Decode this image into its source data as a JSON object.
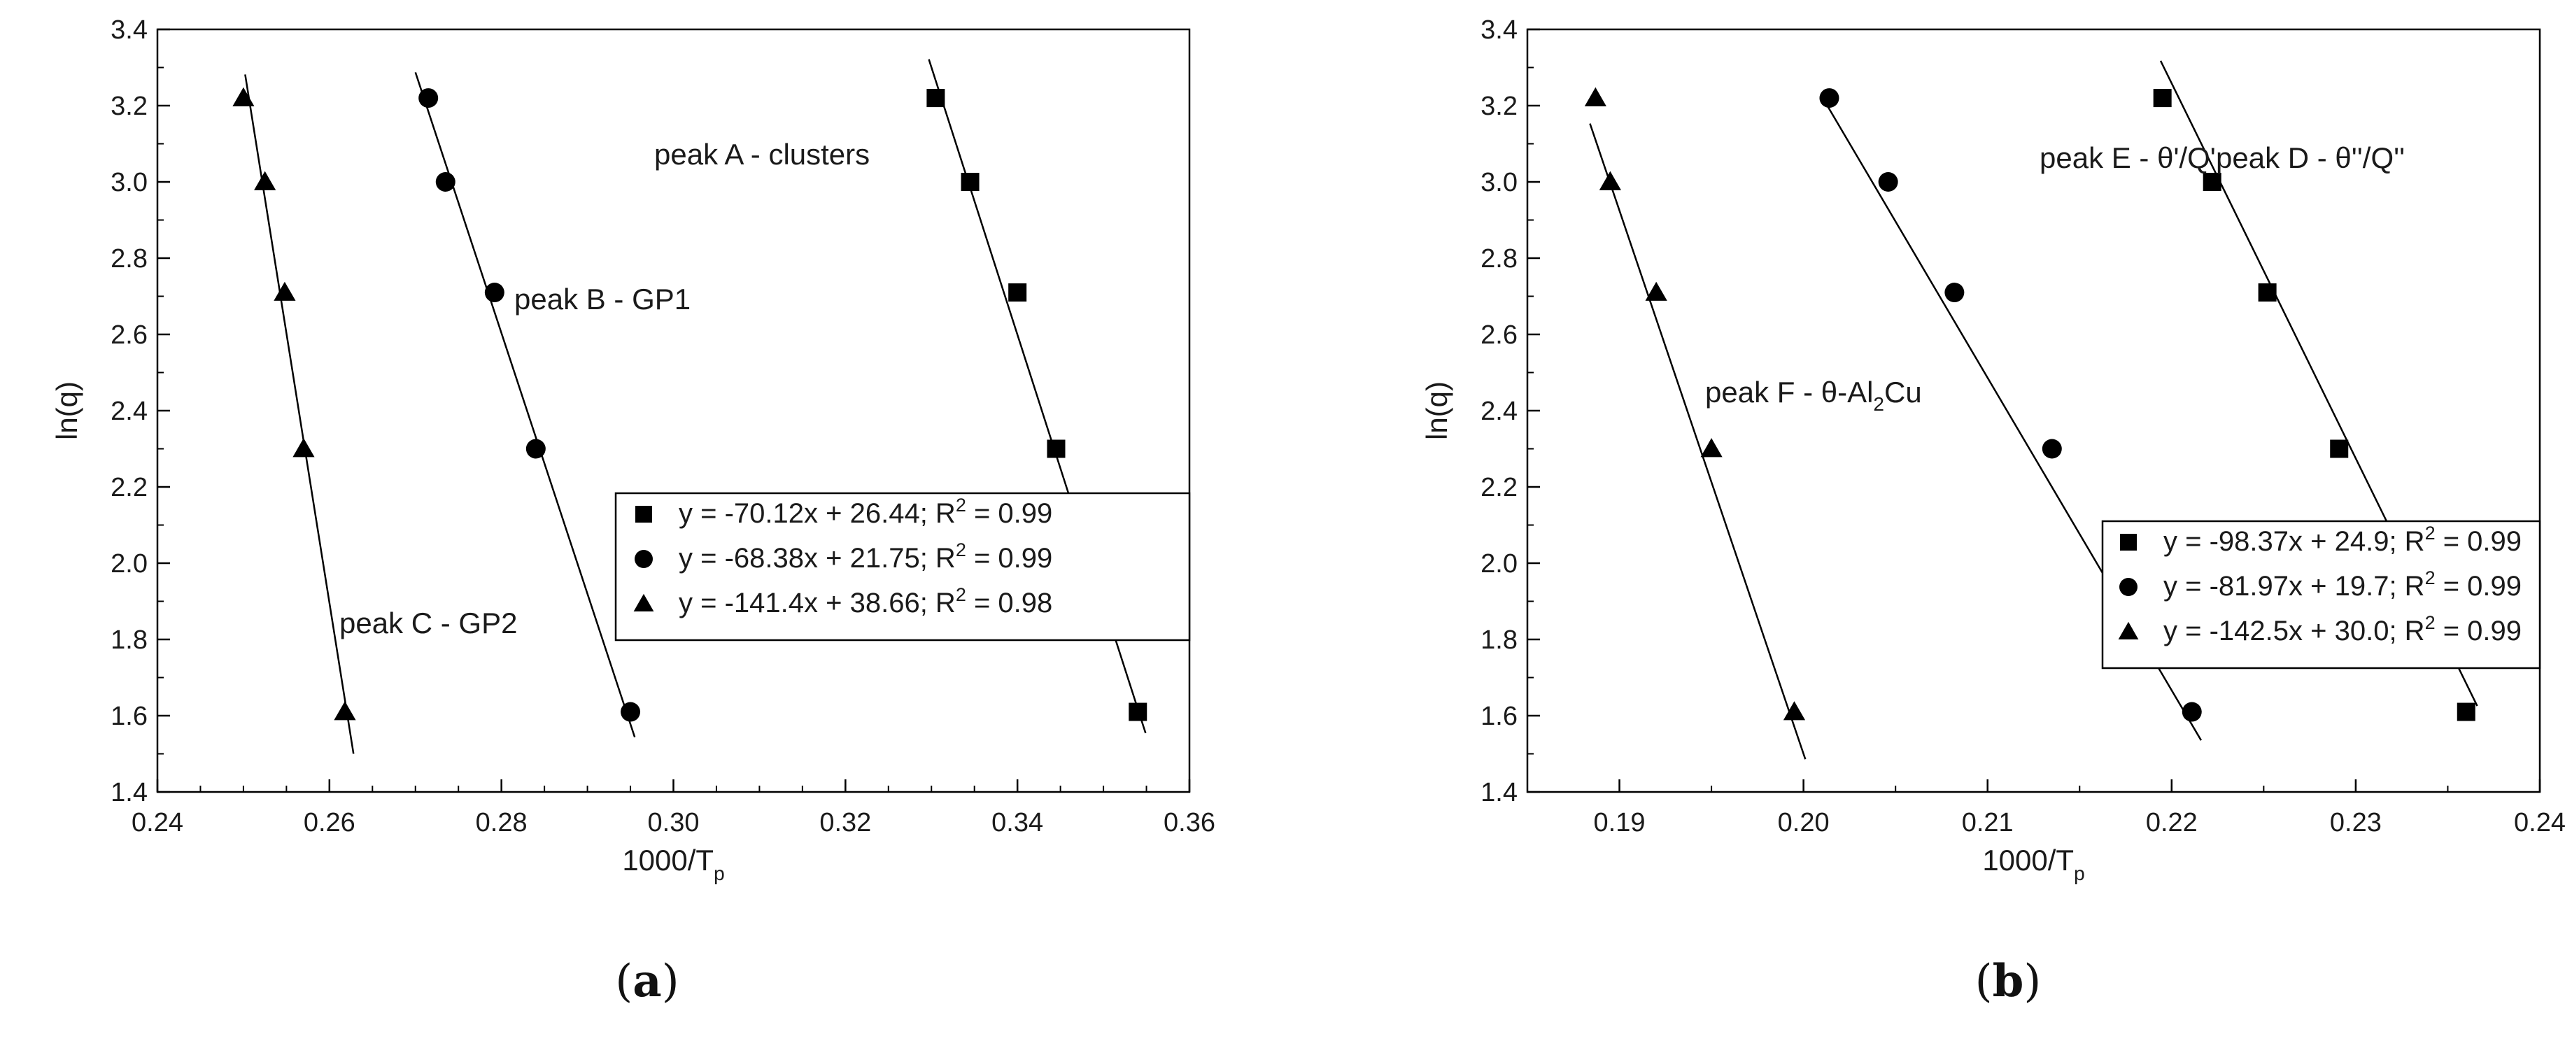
{
  "chart_data": [
    {
      "type": "scatter",
      "panel": "a",
      "caption_label": "a",
      "xlabel": "1000/T",
      "xlabel_sub": "p",
      "ylabel": "ln(q)",
      "xlim": [
        0.24,
        0.36
      ],
      "ylim": [
        1.4,
        3.4
      ],
      "x_ticks": [
        "0.24",
        "0.26",
        "0.28",
        "0.30",
        "0.32",
        "0.34",
        "0.36"
      ],
      "y_ticks": [
        "1.4",
        "1.6",
        "1.8",
        "2.0",
        "2.2",
        "2.4",
        "2.6",
        "2.8",
        "3.0",
        "3.2",
        "3.4"
      ],
      "series": [
        {
          "marker": "square",
          "legend_text": "y = -70.12x + 26.44;  R",
          "legend_r2": " = 0.99",
          "annotation": "peak A - clusters",
          "fit": {
            "slope": -70.12,
            "intercept": 26.44,
            "x_range": [
              0.3297,
              0.3549
            ]
          },
          "points": [
            [
              0.3305,
              3.22
            ],
            [
              0.3345,
              3.0
            ],
            [
              0.34,
              2.71
            ],
            [
              0.3445,
              2.3
            ],
            [
              0.354,
              1.61
            ]
          ]
        },
        {
          "marker": "circle",
          "legend_text": "y = -68.38x + 21.75;  R",
          "legend_r2": " = 0.99",
          "annotation": "peak B - GP1",
          "fit": {
            "slope": -68.38,
            "intercept": 21.75,
            "x_range": [
              0.27,
              0.2955
            ]
          },
          "points": [
            [
              0.2715,
              3.22
            ],
            [
              0.2735,
              3.0
            ],
            [
              0.2792,
              2.71
            ],
            [
              0.284,
              2.3
            ],
            [
              0.295,
              1.61
            ]
          ]
        },
        {
          "marker": "triangle",
          "legend_text": "y = -141.4x + 38.66; R",
          "legend_r2": " = 0.98",
          "annotation": "peak C - GP2",
          "fit": {
            "slope": -141.4,
            "intercept": 38.66,
            "x_range": [
              0.2502,
              0.2628
            ]
          },
          "points": [
            [
              0.25,
              3.22
            ],
            [
              0.2525,
              3.0
            ],
            [
              0.2548,
              2.71
            ],
            [
              0.257,
              2.3
            ],
            [
              0.2618,
              1.61
            ]
          ]
        }
      ]
    },
    {
      "type": "scatter",
      "panel": "b",
      "caption_label": "b",
      "xlabel": "1000/T",
      "xlabel_sub": "p",
      "ylabel": "ln(q)",
      "xlim": [
        0.185,
        0.24
      ],
      "ylim": [
        1.4,
        3.4
      ],
      "x_ticks": [
        "0.19",
        "0.20",
        "0.21",
        "0.22",
        "0.23",
        "0.24"
      ],
      "y_ticks": [
        "1.4",
        "1.6",
        "1.8",
        "2.0",
        "2.2",
        "2.4",
        "2.6",
        "2.8",
        "3.0",
        "3.2",
        "3.4"
      ],
      "series": [
        {
          "marker": "square",
          "legend_text": "y = -98.37x + 24.9; R",
          "legend_r2": " = 0.99",
          "annotation": "peak D - θ''/Q''",
          "fit": {
            "slope": -98.37,
            "intercept": 24.9,
            "x_range": [
              0.2194,
              0.2366
            ]
          },
          "points": [
            [
              0.2195,
              3.22
            ],
            [
              0.2222,
              3.0
            ],
            [
              0.2252,
              2.71
            ],
            [
              0.2291,
              2.3
            ],
            [
              0.236,
              1.61
            ]
          ]
        },
        {
          "marker": "circle",
          "legend_text": "y = -81.97x + 19.7; R",
          "legend_r2": " = 0.99",
          "annotation": "peak E - θ'/Q'",
          "fit": {
            "slope": -81.97,
            "intercept": 19.7,
            "x_range": [
              0.2012,
              0.2216
            ]
          },
          "points": [
            [
              0.2014,
              3.22
            ],
            [
              0.2046,
              3.0
            ],
            [
              0.2082,
              2.71
            ],
            [
              0.2135,
              2.3
            ],
            [
              0.2211,
              1.61
            ]
          ]
        },
        {
          "marker": "triangle",
          "legend_text": "y = -142.5x + 30.0; R",
          "legend_r2": " = 0.99",
          "annotation_prefix": "peak F - θ-Al",
          "annotation_sub": "2",
          "annotation_suffix": "Cu",
          "fit": {
            "slope": -142.5,
            "intercept": 30.0,
            "x_range": [
              0.1884,
              0.2001
            ]
          },
          "points": [
            [
              0.1887,
              3.22
            ],
            [
              0.1895,
              3.0
            ],
            [
              0.192,
              2.71
            ],
            [
              0.195,
              2.3
            ],
            [
              0.1995,
              1.61
            ]
          ]
        }
      ]
    }
  ]
}
